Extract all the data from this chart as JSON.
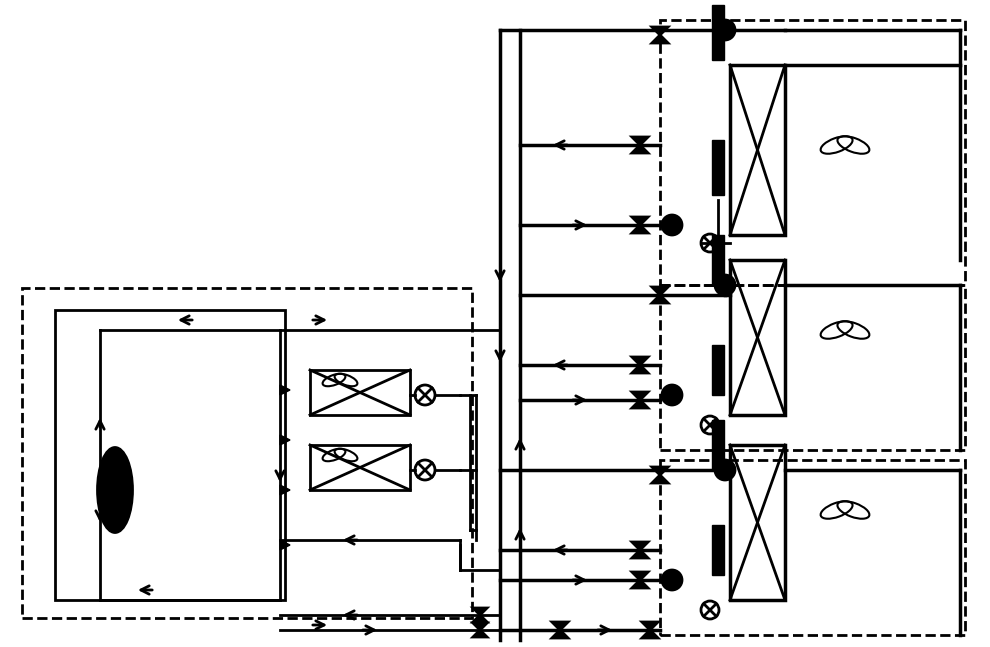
{
  "bg_color": "#ffffff",
  "line_color": "#000000",
  "line_width": 2.0,
  "fig_width": 9.9,
  "fig_height": 6.47
}
